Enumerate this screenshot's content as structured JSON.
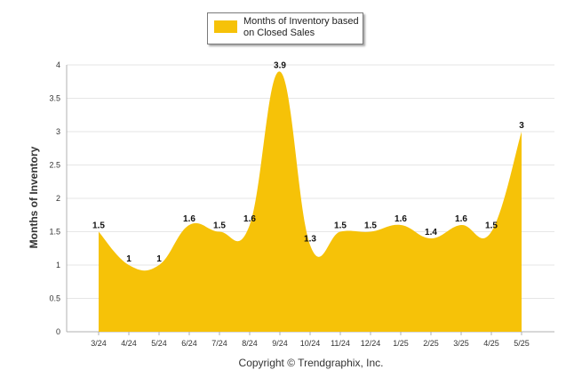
{
  "chart_data": {
    "type": "area",
    "categories": [
      "3/24",
      "4/24",
      "5/24",
      "6/24",
      "7/24",
      "8/24",
      "9/24",
      "10/24",
      "11/24",
      "12/24",
      "1/25",
      "2/25",
      "3/25",
      "4/25",
      "5/25"
    ],
    "series": [
      {
        "name": "Months of Inventory based on Closed Sales",
        "values": [
          1.5,
          1,
          1,
          1.6,
          1.5,
          1.6,
          3.9,
          1.3,
          1.5,
          1.5,
          1.6,
          1.4,
          1.6,
          1.5,
          3
        ],
        "color": "#F6C208"
      }
    ],
    "ylabel": "Months of Inventory",
    "ylim": [
      0,
      4
    ],
    "yticks": [
      "0",
      "0.5",
      "1",
      "1.5",
      "2",
      "2.5",
      "3",
      "3.5",
      "4"
    ],
    "grid": true,
    "legend_position": "top-center",
    "data_labels": true
  },
  "legend": {
    "label": "Months of Inventory based on Closed Sales"
  },
  "footer": {
    "copyright": "Copyright © Trendgraphix, Inc."
  },
  "colors": {
    "area": "#F6C208",
    "grid": "#e6e6e6",
    "axis": "#b0b0b0"
  }
}
